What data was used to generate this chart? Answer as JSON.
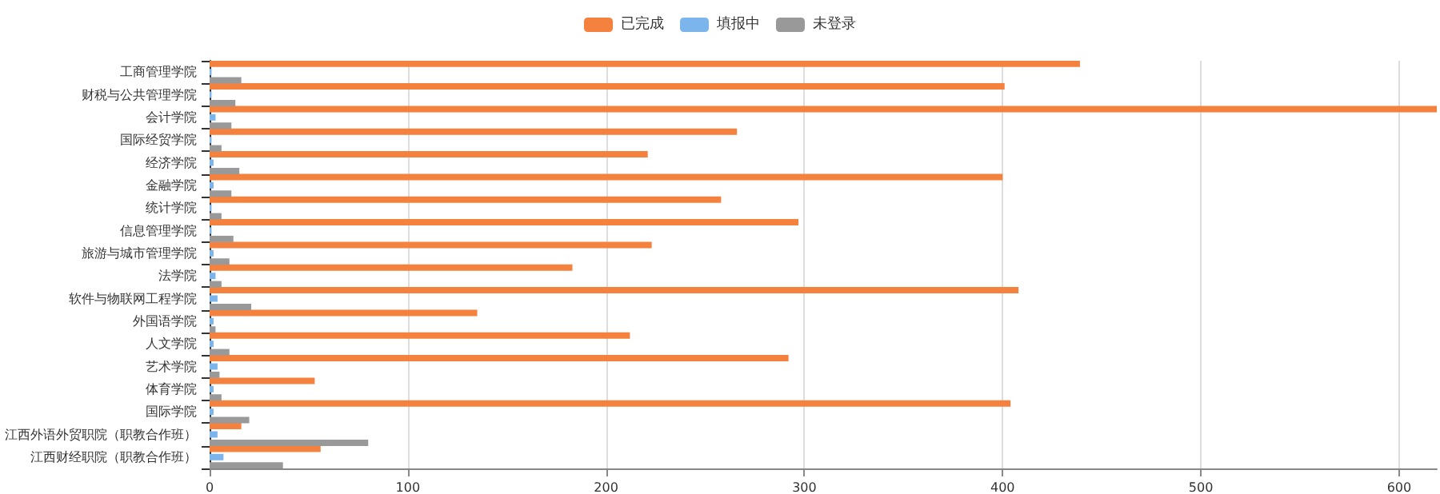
{
  "chart_data": {
    "type": "bar",
    "orientation": "horizontal",
    "categories": [
      "工商管理学院",
      "财税与公共管理学院",
      "会计学院",
      "国际经贸学院",
      "经济学院",
      "金融学院",
      "统计学院",
      "信息管理学院",
      "旅游与城市管理学院",
      "法学院",
      "软件与物联网工程学院",
      "外国语学院",
      "人文学院",
      "艺术学院",
      "体育学院",
      "国际学院",
      "江西外语外贸职院（职教合作班）",
      "江西财经职院（职教合作班）"
    ],
    "series": [
      {
        "name": "已完成",
        "color": "#f5813f",
        "values": [
          439,
          401,
          619,
          266,
          221,
          400,
          258,
          297,
          223,
          183,
          408,
          135,
          212,
          292,
          53,
          404,
          16,
          56
        ]
      },
      {
        "name": "填报中",
        "color": "#7cb5ec",
        "values": [
          1,
          1,
          3,
          1,
          2,
          2,
          1,
          1,
          2,
          3,
          4,
          2,
          2,
          4,
          2,
          2,
          4,
          7
        ]
      },
      {
        "name": "未登录",
        "color": "#999999",
        "values": [
          16,
          13,
          11,
          6,
          15,
          11,
          6,
          12,
          10,
          6,
          21,
          3,
          10,
          5,
          6,
          20,
          80,
          37
        ]
      }
    ],
    "xlim": [
      0,
      619
    ],
    "xticks": [
      0,
      100,
      200,
      300,
      400,
      500,
      600
    ],
    "grid": "x",
    "legend": "top"
  }
}
